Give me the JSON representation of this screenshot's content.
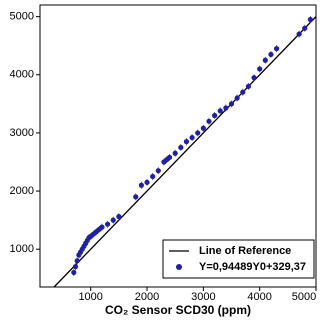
{
  "chart_data": {
    "type": "scatter",
    "xlabel": "CO₂ Sensor SCD30 (ppm)",
    "xlim": [
      100,
      5000
    ],
    "ylim": [
      350,
      5200
    ],
    "xticks": [
      1000,
      2000,
      3000,
      4000,
      5000
    ],
    "yticks": [
      1000,
      2000,
      3000,
      4000,
      5000
    ],
    "legend": "bottom-right",
    "reference": {
      "name": "Line of Reference",
      "color": "#000000"
    },
    "series": [
      {
        "name": "Y=0,94489Y0+329,37",
        "color": "#1f1fa8",
        "x": [
          700,
          730,
          760,
          790,
          820,
          850,
          880,
          910,
          940,
          970,
          1000,
          1050,
          1100,
          1150,
          1200,
          1300,
          1400,
          1500,
          1800,
          1900,
          2000,
          2100,
          2200,
          2300,
          2350,
          2400,
          2500,
          2600,
          2700,
          2800,
          2900,
          3000,
          3100,
          3200,
          3300,
          3400,
          3500,
          3600,
          3700,
          3800,
          3900,
          4000,
          4100,
          4200,
          4300,
          4700,
          4800,
          4900
        ],
        "values": [
          600,
          700,
          800,
          900,
          950,
          1000,
          1050,
          1100,
          1150,
          1200,
          1220,
          1260,
          1300,
          1340,
          1380,
          1430,
          1500,
          1560,
          1900,
          2100,
          2150,
          2250,
          2350,
          2500,
          2540,
          2580,
          2650,
          2750,
          2850,
          2920,
          3000,
          3080,
          3200,
          3300,
          3380,
          3430,
          3500,
          3600,
          3700,
          3800,
          3950,
          4100,
          4250,
          4350,
          4450,
          4700,
          4800,
          4950
        ],
        "errors": [
          60,
          60,
          60,
          60,
          60,
          60,
          60,
          60,
          60,
          60,
          60,
          60,
          60,
          60,
          60,
          60,
          60,
          60,
          60,
          60,
          60,
          60,
          60,
          60,
          60,
          60,
          60,
          60,
          60,
          60,
          60,
          60,
          60,
          60,
          60,
          60,
          60,
          60,
          60,
          60,
          60,
          60,
          60,
          60,
          60,
          60,
          60,
          60
        ]
      }
    ]
  }
}
